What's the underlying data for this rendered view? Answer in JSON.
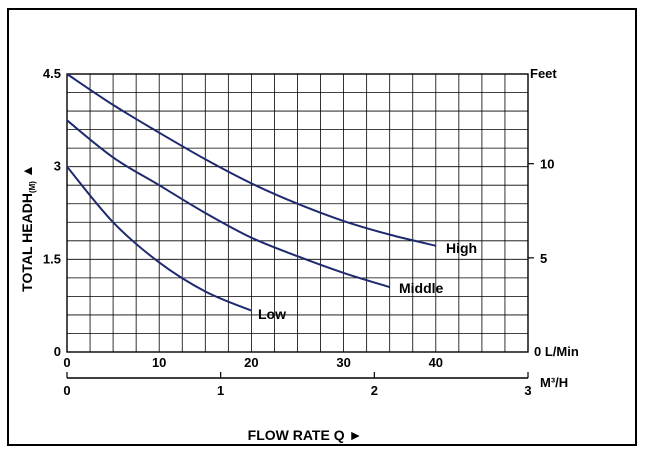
{
  "chart_data": {
    "type": "line",
    "x_primary": {
      "label": "L/Min",
      "range": [
        0,
        50
      ],
      "ticks": [
        0,
        10,
        20,
        30,
        40
      ],
      "tick_labels": [
        "0",
        "10",
        "20",
        "30",
        "40"
      ],
      "label_at_end": "0 L/Min"
    },
    "x_secondary": {
      "label": "M³/H",
      "range": [
        0,
        3
      ],
      "ticks": [
        0,
        1,
        2,
        3
      ],
      "tick_labels": [
        "0",
        "1",
        "2",
        "3"
      ]
    },
    "y_left": {
      "range": [
        0,
        4.5
      ],
      "ticks": [
        0,
        1.5,
        3,
        4.5
      ],
      "tick_labels": [
        "0",
        "1.5",
        "3",
        "4.5"
      ],
      "title": "TOTAL HEADH",
      "title_sub": "(M)",
      "title_arrow": "▲"
    },
    "y_right": {
      "label": "Feet",
      "ticks": [
        5,
        10
      ],
      "tick_labels": [
        "5",
        "10"
      ]
    },
    "xlabel": "FLOW RATE Q",
    "xlabel_arrow": "►",
    "grid": true,
    "series": [
      {
        "name": "High",
        "color": "#1f2a6e",
        "x": [
          0,
          5,
          10,
          15,
          20,
          25,
          30,
          35,
          40
        ],
        "y": [
          4.5,
          4.0,
          3.55,
          3.12,
          2.73,
          2.4,
          2.12,
          1.9,
          1.72
        ]
      },
      {
        "name": "Middle",
        "color": "#1f2a6e",
        "x": [
          0,
          5,
          10,
          15,
          20,
          25,
          30,
          35
        ],
        "y": [
          3.75,
          3.15,
          2.7,
          2.25,
          1.85,
          1.55,
          1.28,
          1.05
        ]
      },
      {
        "name": "Low",
        "color": "#1f2a6e",
        "x": [
          0,
          5,
          10,
          15,
          20
        ],
        "y": [
          3.0,
          2.1,
          1.45,
          0.98,
          0.67
        ]
      }
    ]
  }
}
